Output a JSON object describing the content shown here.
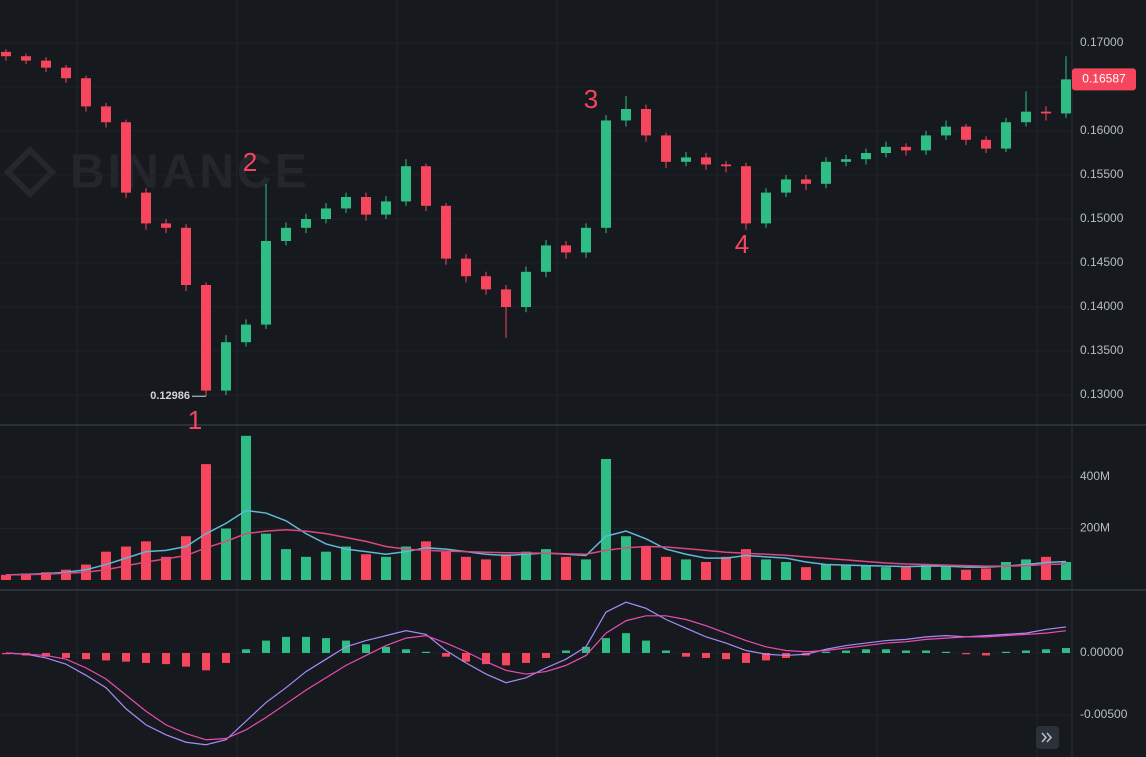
{
  "chart_data": [
    {
      "type": "candlestick",
      "watermark": "BINANCE",
      "up_color": "#2ebd85",
      "down_color": "#f6465d",
      "open": [
        0.169,
        0.1685,
        0.168,
        0.1672,
        0.166,
        0.1628,
        0.161,
        0.153,
        0.1495,
        0.149,
        0.1425,
        0.1305,
        0.136,
        0.138,
        0.1475,
        0.149,
        0.15,
        0.1512,
        0.1525,
        0.1505,
        0.152,
        0.156,
        0.1515,
        0.1455,
        0.1435,
        0.142,
        0.14,
        0.144,
        0.147,
        0.1462,
        0.149,
        0.1612,
        0.1625,
        0.1595,
        0.1565,
        0.157,
        0.1562,
        0.156,
        0.1495,
        0.153,
        0.1545,
        0.154,
        0.1565,
        0.1568,
        0.1575,
        0.1582,
        0.1578,
        0.1595,
        0.1605,
        0.159,
        0.158,
        0.161,
        0.1622,
        0.162
      ],
      "high": [
        0.1693,
        0.1688,
        0.1684,
        0.1675,
        0.1663,
        0.1632,
        0.1613,
        0.1535,
        0.15,
        0.1494,
        0.1428,
        0.1368,
        0.1386,
        0.154,
        0.1496,
        0.1506,
        0.1518,
        0.153,
        0.153,
        0.1526,
        0.1568,
        0.1563,
        0.1518,
        0.146,
        0.144,
        0.1425,
        0.1446,
        0.1476,
        0.1475,
        0.1495,
        0.1618,
        0.164,
        0.163,
        0.1598,
        0.1576,
        0.1575,
        0.1566,
        0.1564,
        0.1535,
        0.155,
        0.155,
        0.157,
        0.1573,
        0.158,
        0.1588,
        0.1586,
        0.16,
        0.1612,
        0.1608,
        0.1594,
        0.1615,
        0.1645,
        0.1628,
        0.1685
      ],
      "low": [
        0.168,
        0.1676,
        0.1667,
        0.1655,
        0.1622,
        0.1604,
        0.1524,
        0.1488,
        0.1484,
        0.1418,
        0.12986,
        0.13,
        0.1355,
        0.1375,
        0.147,
        0.1484,
        0.1495,
        0.1507,
        0.1498,
        0.15,
        0.1515,
        0.1509,
        0.1448,
        0.1428,
        0.1414,
        0.1365,
        0.1394,
        0.1434,
        0.1455,
        0.1456,
        0.1484,
        0.1605,
        0.1588,
        0.1558,
        0.156,
        0.1556,
        0.1553,
        0.1488,
        0.149,
        0.1525,
        0.1533,
        0.1535,
        0.156,
        0.1562,
        0.157,
        0.1572,
        0.1573,
        0.159,
        0.1584,
        0.1575,
        0.1576,
        0.1605,
        0.1612,
        0.1615
      ],
      "close": [
        0.1685,
        0.168,
        0.1672,
        0.166,
        0.1628,
        0.161,
        0.153,
        0.1495,
        0.149,
        0.1425,
        0.1305,
        0.136,
        0.138,
        0.1475,
        0.149,
        0.15,
        0.1512,
        0.1525,
        0.1505,
        0.152,
        0.156,
        0.1515,
        0.1455,
        0.1435,
        0.142,
        0.14,
        0.144,
        0.147,
        0.1462,
        0.149,
        0.1612,
        0.1625,
        0.1595,
        0.1565,
        0.157,
        0.1562,
        0.156,
        0.1495,
        0.153,
        0.1545,
        0.154,
        0.1565,
        0.1568,
        0.1575,
        0.1582,
        0.1578,
        0.1595,
        0.1605,
        0.159,
        0.158,
        0.161,
        0.1622,
        0.162,
        0.16587
      ],
      "ylim": [
        0.12659,
        0.17489
      ],
      "yticks": [
        {
          "value": 0.13,
          "label": "0.13000"
        },
        {
          "value": 0.135,
          "label": "0.13500"
        },
        {
          "value": 0.14,
          "label": "0.14000"
        },
        {
          "value": 0.145,
          "label": "0.14500"
        },
        {
          "value": 0.15,
          "label": "0.15000"
        },
        {
          "value": 0.155,
          "label": "0.15500"
        },
        {
          "value": 0.16,
          "label": "0.16000"
        },
        {
          "value": 0.165,
          "label": "0.16500"
        },
        {
          "value": 0.17,
          "label": "0.17000"
        }
      ],
      "last_price": 0.16587,
      "low_marker": 0.12986,
      "annotations": [
        "1",
        "2",
        "3",
        "4"
      ]
    },
    {
      "type": "bar",
      "values": [
        20,
        25,
        30,
        40,
        60,
        110,
        130,
        150,
        90,
        170,
        450,
        200,
        560,
        180,
        120,
        90,
        110,
        130,
        100,
        90,
        130,
        150,
        110,
        90,
        80,
        100,
        110,
        120,
        90,
        80,
        470,
        170,
        130,
        90,
        80,
        70,
        90,
        120,
        80,
        70,
        50,
        60,
        60,
        55,
        50,
        50,
        60,
        55,
        40,
        45,
        70,
        80,
        90,
        70
      ],
      "ylim": [
        0,
        602
      ],
      "yticks": [
        {
          "value": 200,
          "label": "200M"
        },
        {
          "value": 400,
          "label": "400M"
        }
      ],
      "lines": [
        {
          "color": "#5fb8d8",
          "values": [
            20,
            22,
            25,
            30,
            40,
            60,
            85,
            110,
            115,
            130,
            180,
            220,
            270,
            260,
            230,
            180,
            140,
            120,
            110,
            100,
            110,
            125,
            120,
            110,
            100,
            95,
            100,
            105,
            100,
            95,
            170,
            190,
            160,
            120,
            100,
            85,
            85,
            95,
            90,
            85,
            70,
            60,
            58,
            56,
            54,
            52,
            54,
            54,
            50,
            50,
            54,
            60,
            68,
            72
          ]
        },
        {
          "color": "#d9487f",
          "values": [
            20,
            21,
            23,
            26,
            30,
            40,
            55,
            70,
            82,
            95,
            125,
            150,
            180,
            190,
            195,
            190,
            180,
            165,
            150,
            130,
            120,
            115,
            112,
            110,
            108,
            106,
            105,
            104,
            102,
            100,
            115,
            125,
            130,
            128,
            122,
            115,
            108,
            104,
            100,
            96,
            90,
            84,
            78,
            72,
            66,
            62,
            60,
            58,
            56,
            54,
            54,
            56,
            60,
            62
          ]
        }
      ]
    },
    {
      "type": "macd",
      "histogram": [
        -0.0001,
        -0.0002,
        -0.0003,
        -0.0004,
        -0.0005,
        -0.0006,
        -0.0007,
        -0.0008,
        -0.0009,
        -0.0011,
        -0.0014,
        -0.0008,
        0.0003,
        0.001,
        0.0013,
        0.0013,
        0.0012,
        0.001,
        0.0007,
        0.0005,
        0.0003,
        0.0001,
        -0.0003,
        -0.0007,
        -0.0009,
        -0.001,
        -0.0008,
        -0.0004,
        0.0002,
        0.0005,
        0.0012,
        0.0016,
        0.001,
        0.0002,
        -0.0003,
        -0.0004,
        -0.0005,
        -0.0008,
        -0.0006,
        -0.0004,
        -0.0002,
        0.0001,
        0.0002,
        0.0003,
        0.0003,
        0.0002,
        0.0002,
        0.0001,
        -0.0001,
        -0.0002,
        0.0001,
        0.0002,
        0.0003,
        0.0004
      ],
      "macd": {
        "color": "#a78bfa",
        "values": [
          0,
          -0.0001,
          -0.0004,
          -0.0009,
          -0.0018,
          -0.0028,
          -0.0045,
          -0.0058,
          -0.0066,
          -0.0072,
          -0.0074,
          -0.007,
          -0.0055,
          -0.004,
          -0.0028,
          -0.0015,
          -0.0005,
          0.0005,
          0.001,
          0.0014,
          0.0018,
          0.0015,
          0.0002,
          -0.0008,
          -0.0017,
          -0.0024,
          -0.002,
          -0.0012,
          -0.0005,
          0.0005,
          0.0033,
          0.0041,
          0.0036,
          0.0027,
          0.002,
          0.0013,
          0.0008,
          0.0002,
          -0.0001,
          -0.0002,
          -0.0001,
          0.0003,
          0.0006,
          0.0008,
          0.001,
          0.0011,
          0.0013,
          0.0014,
          0.0013,
          0.0014,
          0.0015,
          0.0016,
          0.0019,
          0.0021
        ]
      },
      "signal": {
        "color": "#e84db0",
        "values": [
          0,
          -0.0001,
          -0.0002,
          -0.0005,
          -0.0012,
          -0.0021,
          -0.0034,
          -0.0047,
          -0.0058,
          -0.0065,
          -0.007,
          -0.0069,
          -0.0062,
          -0.0052,
          -0.0041,
          -0.003,
          -0.002,
          -0.001,
          -0.0002,
          0.0006,
          0.0012,
          0.0014,
          0.0008,
          0.0001,
          -0.0007,
          -0.0014,
          -0.0017,
          -0.0015,
          -0.001,
          -0.0002,
          0.0016,
          0.0026,
          0.003,
          0.003,
          0.0027,
          0.0022,
          0.0016,
          0.001,
          0.0005,
          0.0002,
          0.0001,
          0.0002,
          0.0004,
          0.0006,
          0.0008,
          0.0009,
          0.0011,
          0.0012,
          0.0013,
          0.0013,
          0.0014,
          0.0015,
          0.0016,
          0.0018
        ]
      },
      "ylim": [
        -0.00839,
        0.00508
      ],
      "yticks": [
        {
          "value": 0,
          "label": "0.00000"
        },
        {
          "value": -0.005,
          "label": "-0.00500"
        }
      ]
    }
  ]
}
